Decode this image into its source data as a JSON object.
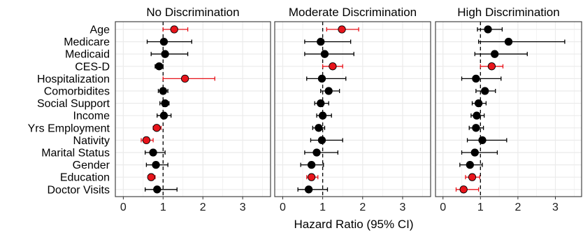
{
  "chart_data": {
    "type": "scatter",
    "subtype": "forest-plot",
    "categories": [
      "Age",
      "Medicare",
      "Medicaid",
      "CES-D",
      "Hospitalization",
      "Comorbidites",
      "Social Support",
      "Income",
      "Yrs Employment",
      "Nativity",
      "Marital Status",
      "Gender",
      "Education",
      "Doctor Visits"
    ],
    "xlabel": "Hazard Ratio (95% CI)",
    "xlim": [
      -0.2,
      3.7
    ],
    "xticks": [
      0,
      1,
      2,
      3
    ],
    "xtick_labels": [
      "0",
      "1",
      "2",
      "3"
    ],
    "reference_line": 1,
    "grid": true,
    "colors": {
      "significant": "#e8141b",
      "nonsignificant": "#000000",
      "grid": "#ebebeb",
      "panel_border": "#333333"
    },
    "panels": [
      {
        "title": "No Discrimination",
        "hr": [
          1.28,
          1.02,
          1.05,
          0.9,
          1.55,
          1.0,
          1.05,
          1.02,
          0.84,
          0.58,
          0.75,
          0.82,
          0.7,
          0.85
        ],
        "low": [
          1.0,
          0.6,
          0.7,
          0.8,
          1.0,
          0.88,
          0.92,
          0.85,
          0.75,
          0.45,
          0.55,
          0.58,
          0.62,
          0.55
        ],
        "high": [
          1.62,
          1.72,
          1.62,
          1.0,
          2.3,
          1.12,
          1.15,
          1.2,
          0.95,
          0.75,
          1.05,
          1.12,
          0.8,
          1.35
        ],
        "significant": [
          true,
          false,
          false,
          false,
          true,
          false,
          false,
          false,
          true,
          true,
          false,
          false,
          true,
          false
        ]
      },
      {
        "title": "Moderate Discrimination",
        "hr": [
          1.48,
          0.95,
          1.05,
          1.25,
          0.98,
          1.15,
          0.95,
          1.0,
          0.9,
          0.98,
          0.85,
          0.72,
          0.72,
          0.65
        ],
        "low": [
          1.1,
          0.55,
          0.55,
          1.0,
          0.6,
          0.95,
          0.8,
          0.85,
          0.75,
          0.7,
          0.55,
          0.45,
          0.6,
          0.38
        ],
        "high": [
          1.9,
          1.7,
          1.78,
          1.5,
          1.58,
          1.42,
          1.15,
          1.22,
          1.05,
          1.5,
          1.38,
          1.02,
          0.88,
          1.12
        ],
        "significant": [
          true,
          false,
          false,
          true,
          false,
          false,
          false,
          false,
          false,
          false,
          false,
          false,
          true,
          false
        ]
      },
      {
        "title": "High Discrimination",
        "hr": [
          1.2,
          1.75,
          1.38,
          1.3,
          0.88,
          1.12,
          0.95,
          0.9,
          0.88,
          1.05,
          0.85,
          0.72,
          0.78,
          0.55
        ],
        "low": [
          0.92,
          0.95,
          0.85,
          1.0,
          0.5,
          0.88,
          0.78,
          0.75,
          0.7,
          0.65,
          0.5,
          0.45,
          0.6,
          0.35
        ],
        "high": [
          1.58,
          3.25,
          2.25,
          1.6,
          1.55,
          1.4,
          1.15,
          1.1,
          1.08,
          1.7,
          1.45,
          1.05,
          0.98,
          0.95
        ],
        "significant": [
          false,
          false,
          false,
          true,
          false,
          false,
          false,
          false,
          false,
          false,
          false,
          false,
          true,
          true
        ]
      }
    ]
  }
}
